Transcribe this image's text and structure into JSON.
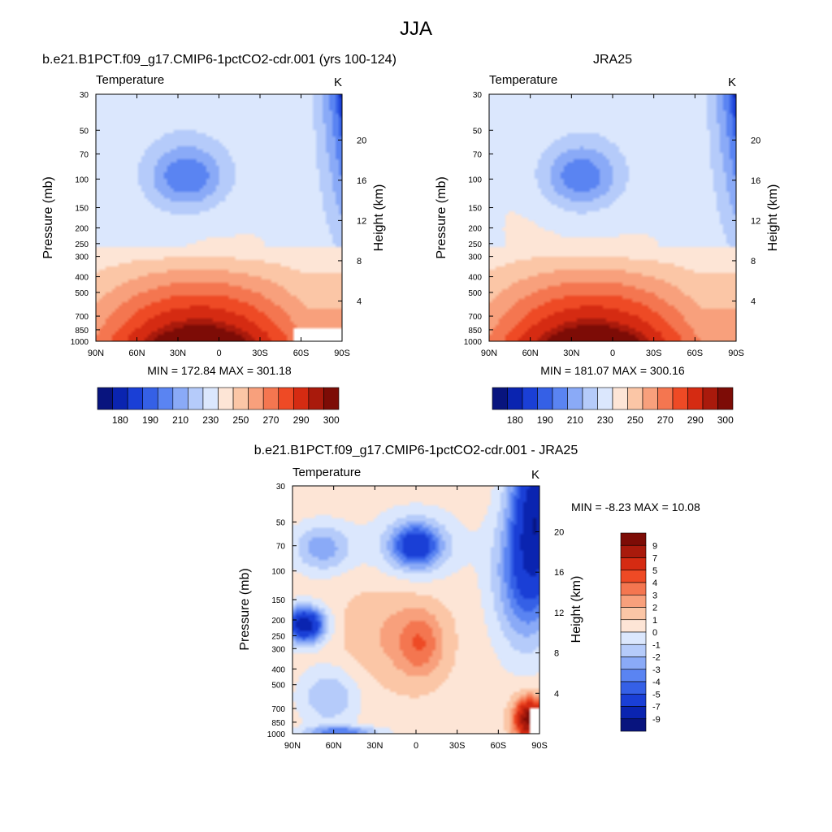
{
  "figure": {
    "title": "JJA"
  },
  "colors": {
    "abs_palette": [
      "#08147e",
      "#0a24b0",
      "#1a3fd6",
      "#3560e6",
      "#5a84f2",
      "#8aaaf7",
      "#b5cbfa",
      "#dbe7fd",
      "#fde5d6",
      "#fbc6a6",
      "#f8a07c",
      "#f47650",
      "#ee4a25",
      "#d52b12",
      "#a91a0c",
      "#7d0c06"
    ],
    "diff_palette": [
      "#08147e",
      "#0a24b0",
      "#1a3fd6",
      "#3560e6",
      "#5a84f2",
      "#8aaaf7",
      "#b5cbfa",
      "#dbe7fd",
      "#fde5d6",
      "#fbc6a6",
      "#f8a07c",
      "#f47650",
      "#ee4a25",
      "#d52b12",
      "#a91a0c",
      "#7d0c06"
    ],
    "blank": "#ffffff"
  },
  "chart_data": [
    {
      "id": "model",
      "type": "heatmap",
      "title": "b.e21.B1PCT.f09_g17.CMIP6-1pctCO2-cdr.001 (yrs 100-124)",
      "left_label": "Temperature",
      "right_label": "K",
      "ylabel": "Pressure (mb)",
      "ylabel_right": "Height (km)",
      "x_ticks": [
        "90N",
        "60N",
        "30N",
        "0",
        "30S",
        "60S",
        "90S"
      ],
      "y_ticks": [
        "30",
        "50",
        "70",
        "100",
        "150",
        "200",
        "250",
        "300",
        "400",
        "500",
        "700",
        "850",
        "1000"
      ],
      "y_ticks_right": [
        "20",
        "16",
        "12",
        "8",
        "4"
      ],
      "stats": "MIN = 172.84  MAX = 301.18",
      "min": 172.84,
      "max": 301.18,
      "colorbar_labels": [
        "180",
        "190",
        "210",
        "230",
        "250",
        "270",
        "290",
        "300"
      ],
      "levels": [
        175,
        180,
        185,
        190,
        200,
        210,
        220,
        230,
        240,
        250,
        260,
        270,
        280,
        290,
        295,
        300
      ],
      "surface_blank": true
    },
    {
      "id": "obs",
      "type": "heatmap",
      "title": "JRA25",
      "left_label": "Temperature",
      "right_label": "K",
      "ylabel": "Pressure (mb)",
      "ylabel_right": "Height (km)",
      "x_ticks": [
        "90N",
        "60N",
        "30N",
        "0",
        "30S",
        "60S",
        "90S"
      ],
      "y_ticks": [
        "30",
        "50",
        "70",
        "100",
        "150",
        "200",
        "250",
        "300",
        "400",
        "500",
        "700",
        "850",
        "1000"
      ],
      "y_ticks_right": [
        "20",
        "16",
        "12",
        "8",
        "4"
      ],
      "stats": "MIN = 181.07  MAX = 300.16",
      "min": 181.07,
      "max": 300.16,
      "colorbar_labels": [
        "180",
        "190",
        "210",
        "230",
        "250",
        "270",
        "290",
        "300"
      ],
      "levels": [
        175,
        180,
        185,
        190,
        200,
        210,
        220,
        230,
        240,
        250,
        260,
        270,
        280,
        290,
        295,
        300
      ],
      "surface_blank": false
    },
    {
      "id": "diff",
      "type": "heatmap",
      "title": "b.e21.B1PCT.f09_g17.CMIP6-1pctCO2-cdr.001 - JRA25",
      "left_label": "Temperature",
      "right_label": "K",
      "ylabel": "Pressure (mb)",
      "ylabel_right": "Height (km)",
      "x_ticks": [
        "90N",
        "60N",
        "30N",
        "0",
        "30S",
        "60S",
        "90S"
      ],
      "y_ticks": [
        "30",
        "50",
        "70",
        "100",
        "150",
        "200",
        "250",
        "300",
        "400",
        "500",
        "700",
        "850",
        "1000"
      ],
      "y_ticks_right": [
        "20",
        "16",
        "12",
        "8",
        "4"
      ],
      "stats": "MIN =  -8.23  MAX =  10.08",
      "min": -8.23,
      "max": 10.08,
      "colorbar_labels": [
        "9",
        "7",
        "5",
        "4",
        "3",
        "2",
        "1",
        "0",
        "-1",
        "-2",
        "-3",
        "-4",
        "-5",
        "-7",
        "-9"
      ],
      "levels": [
        -9,
        -7,
        -5,
        -4,
        -3,
        -2,
        -1,
        0,
        1,
        2,
        3,
        4,
        5,
        7,
        9
      ],
      "surface_blank": true
    }
  ]
}
